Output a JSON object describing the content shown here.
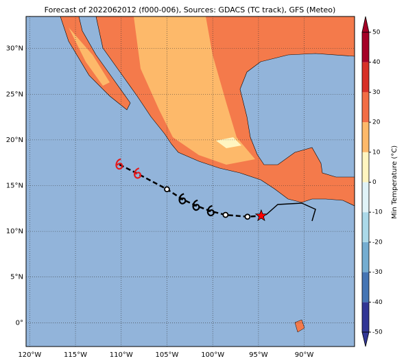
{
  "chart_data": {
    "type": "map",
    "title": "Forecast of 2022062012 (f000-006), Sources: GDACS (TC track), GFS (Meteo)",
    "xlim": [
      -120.4,
      -84.5
    ],
    "ylim": [
      -2.6,
      33.5
    ],
    "xticks": [
      {
        "value": -120,
        "label": "120°W"
      },
      {
        "value": -115,
        "label": "115°W"
      },
      {
        "value": -110,
        "label": "110°W"
      },
      {
        "value": -105,
        "label": "105°W"
      },
      {
        "value": -100,
        "label": "100°W"
      },
      {
        "value": -95,
        "label": "95°W"
      },
      {
        "value": -90,
        "label": "90°W"
      }
    ],
    "yticks": [
      {
        "value": 0,
        "label": "0°"
      },
      {
        "value": 5,
        "label": "5°N"
      },
      {
        "value": 10,
        "label": "10°N"
      },
      {
        "value": 15,
        "label": "15°N"
      },
      {
        "value": 20,
        "label": "20°N"
      },
      {
        "value": 25,
        "label": "25°N"
      },
      {
        "value": 30,
        "label": "30°N"
      }
    ],
    "grid": true,
    "track": {
      "lon": [
        -110.2,
        -108.2,
        -105.0,
        -103.3,
        -101.8,
        -100.2,
        -98.6,
        -96.2,
        -94.7
      ],
      "lat": [
        17.3,
        16.3,
        14.6,
        13.5,
        12.8,
        12.2,
        11.8,
        11.6,
        11.7
      ],
      "colors": [
        "#e31a1c",
        "#e31a1c",
        "#000000",
        "#000000",
        "#000000",
        "#000000",
        "#000000",
        "#000000",
        "#ff0000"
      ],
      "markers": [
        "storm",
        "storm",
        "circle",
        "storm",
        "storm",
        "storm",
        "circle",
        "circle",
        "star"
      ]
    },
    "colorbar": {
      "label": "Min Temperature (°C)",
      "ticks": [
        -50,
        -40,
        -30,
        -20,
        -10,
        0,
        10,
        20,
        30,
        40,
        50
      ],
      "colors": [
        "#313695",
        "#4575b4",
        "#74add1",
        "#abd9e9",
        "#e0f3f8",
        "#fff5c0",
        "#fdb96a",
        "#f26d45",
        "#d73027",
        "#a50026"
      ]
    }
  }
}
